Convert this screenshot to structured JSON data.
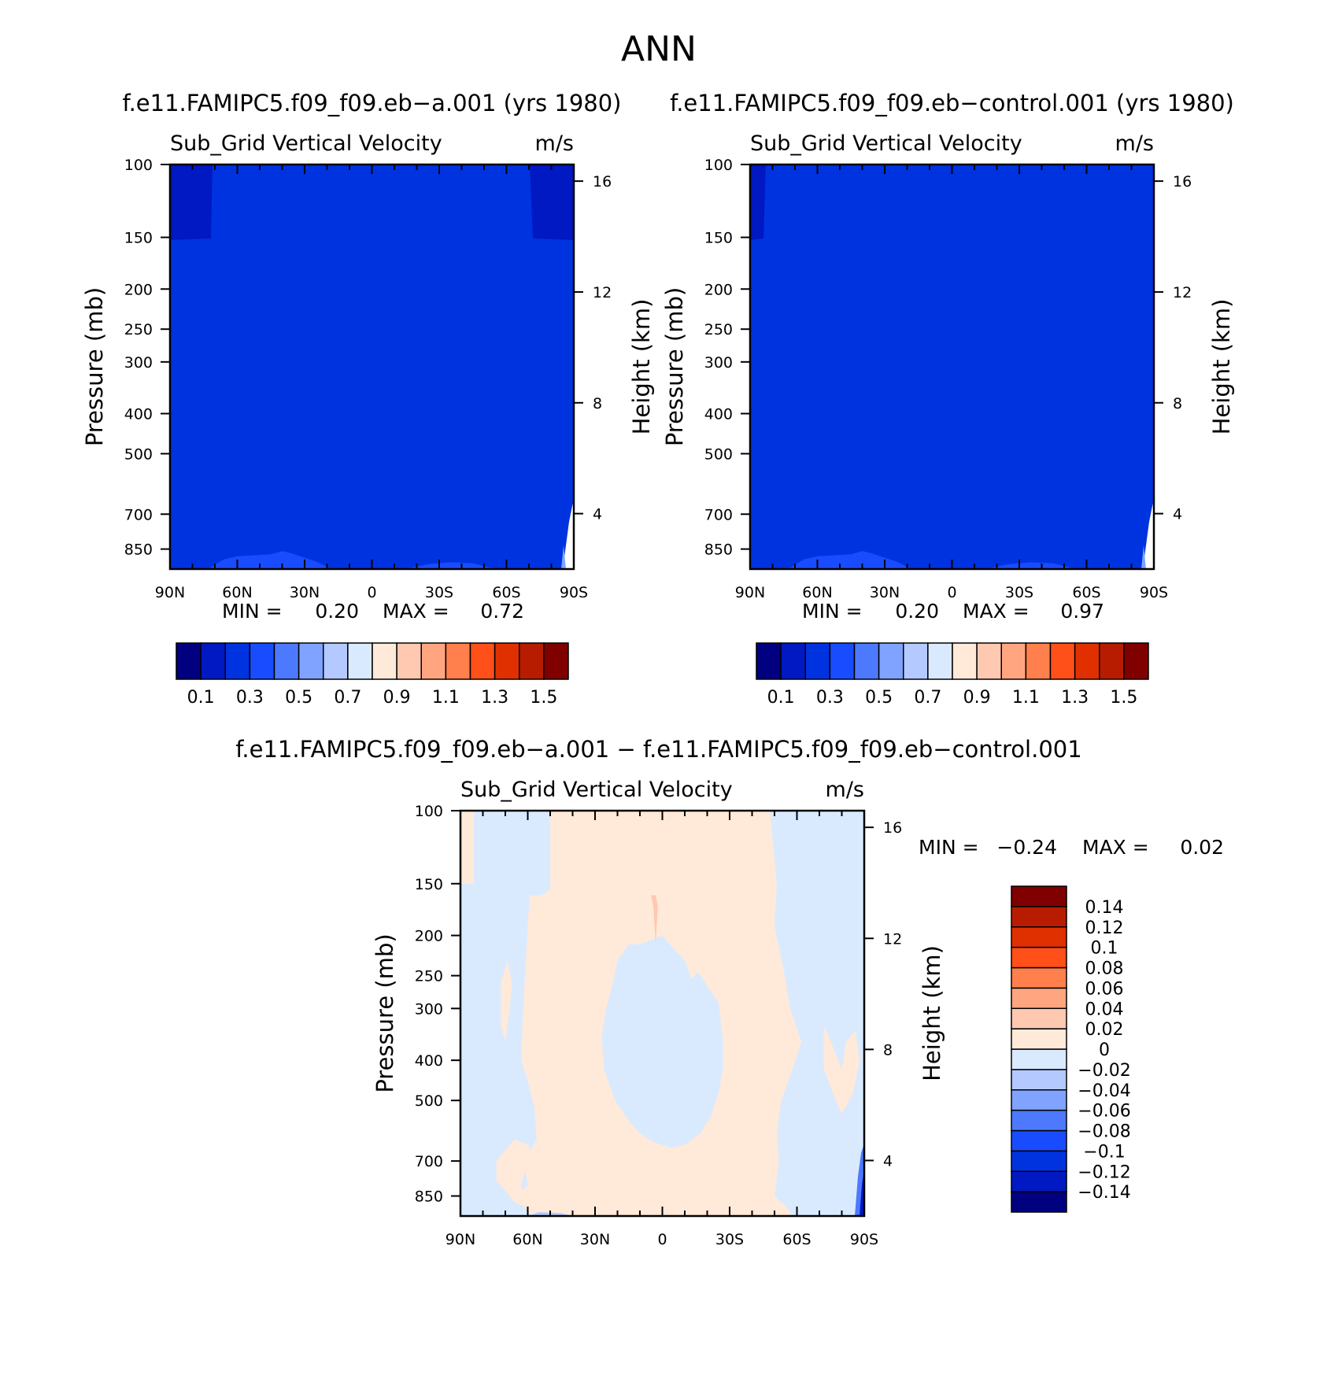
{
  "figure": {
    "title": "ANN"
  },
  "units_label": "m/s",
  "chart_data": [
    {
      "id": "case-a",
      "type": "contour",
      "title": "f.e11.FAMIPC5.f09_f09.eb−a.001 (yrs 1980)",
      "subtitle": "Sub_Grid Vertical Velocity",
      "units": "m/s",
      "xlabel": "",
      "ylabel": "Pressure (mb)",
      "y2label": "Height (km)",
      "x_ticks": [
        90,
        60,
        30,
        0,
        -30,
        -60,
        -90
      ],
      "x_tick_labels": [
        "90N",
        "60N",
        "30N",
        "0",
        "30S",
        "60S",
        "90S"
      ],
      "y_ticks": [
        100,
        150,
        200,
        250,
        300,
        400,
        500,
        700,
        850
      ],
      "y_tick_labels": [
        "100",
        "150",
        "200",
        "250",
        "300",
        "400",
        "500",
        "700",
        "850"
      ],
      "ylim": [
        100,
        950
      ],
      "y2_ticks": [
        16,
        12,
        8,
        4
      ],
      "y2_tick_labels": [
        "16",
        "12",
        "8",
        "4"
      ],
      "min_label": "MIN =",
      "min_value": "0.20",
      "max_label": "MAX =",
      "max_value": "0.72",
      "colorbar": {
        "orientation": "horizontal",
        "colors": [
          "#000080",
          "#0019c2",
          "#0033e0",
          "#1a4cff",
          "#4d79ff",
          "#80a3ff",
          "#b3c9ff",
          "#d9eaff",
          "#ffe9d9",
          "#ffc8b0",
          "#ffa680",
          "#ff7f4d",
          "#ff5019",
          "#e03000",
          "#b81c00",
          "#800000"
        ],
        "labels": [
          "0.1",
          "0.3",
          "0.5",
          "0.7",
          "0.9",
          "1.1",
          "1.3",
          "1.5"
        ]
      }
    },
    {
      "id": "case-control",
      "type": "contour",
      "title": "f.e11.FAMIPC5.f09_f09.eb−control.001 (yrs 1980)",
      "subtitle": "Sub_Grid Vertical Velocity",
      "units": "m/s",
      "xlabel": "",
      "ylabel": "Pressure (mb)",
      "y2label": "Height (km)",
      "x_ticks": [
        90,
        60,
        30,
        0,
        -30,
        -60,
        -90
      ],
      "x_tick_labels": [
        "90N",
        "60N",
        "30N",
        "0",
        "30S",
        "60S",
        "90S"
      ],
      "y_ticks": [
        100,
        150,
        200,
        250,
        300,
        400,
        500,
        700,
        850
      ],
      "y_tick_labels": [
        "100",
        "150",
        "200",
        "250",
        "300",
        "400",
        "500",
        "700",
        "850"
      ],
      "ylim": [
        100,
        950
      ],
      "y2_ticks": [
        16,
        12,
        8,
        4
      ],
      "y2_tick_labels": [
        "16",
        "12",
        "8",
        "4"
      ],
      "min_label": "MIN =",
      "min_value": "0.20",
      "max_label": "MAX =",
      "max_value": "0.97",
      "colorbar": {
        "orientation": "horizontal",
        "colors": [
          "#000080",
          "#0019c2",
          "#0033e0",
          "#1a4cff",
          "#4d79ff",
          "#80a3ff",
          "#b3c9ff",
          "#d9eaff",
          "#ffe9d9",
          "#ffc8b0",
          "#ffa680",
          "#ff7f4d",
          "#ff5019",
          "#e03000",
          "#b81c00",
          "#800000"
        ],
        "labels": [
          "0.1",
          "0.3",
          "0.5",
          "0.7",
          "0.9",
          "1.1",
          "1.3",
          "1.5"
        ]
      }
    },
    {
      "id": "difference",
      "type": "contour",
      "title": "f.e11.FAMIPC5.f09_f09.eb−a.001 − f.e11.FAMIPC5.f09_f09.eb−control.001",
      "subtitle": "Sub_Grid Vertical Velocity",
      "units": "m/s",
      "xlabel": "",
      "ylabel": "Pressure (mb)",
      "y2label": "Height (km)",
      "x_ticks": [
        90,
        60,
        30,
        0,
        -30,
        -60,
        -90
      ],
      "x_tick_labels": [
        "90N",
        "60N",
        "30N",
        "0",
        "30S",
        "60S",
        "90S"
      ],
      "y_ticks": [
        100,
        150,
        200,
        250,
        300,
        400,
        500,
        700,
        850
      ],
      "y_tick_labels": [
        "100",
        "150",
        "200",
        "250",
        "300",
        "400",
        "500",
        "700",
        "850"
      ],
      "ylim": [
        100,
        950
      ],
      "y2_ticks": [
        16,
        12,
        8,
        4
      ],
      "y2_tick_labels": [
        "16",
        "12",
        "8",
        "4"
      ],
      "min_label": "MIN =",
      "min_value": "−0.24",
      "max_label": "MAX =",
      "max_value": "0.02",
      "colorbar": {
        "orientation": "vertical",
        "colors": [
          "#000080",
          "#0019c2",
          "#0033e0",
          "#1a4cff",
          "#4d79ff",
          "#80a3ff",
          "#b3c9ff",
          "#d9eaff",
          "#ffe9d9",
          "#ffc8b0",
          "#ffa680",
          "#ff7f4d",
          "#ff5019",
          "#e03000",
          "#b81c00",
          "#800000"
        ],
        "labels": [
          "−0.14",
          "−0.12",
          "−0.1",
          "−0.08",
          "−0.06",
          "−0.04",
          "−0.02",
          "0",
          "0.02",
          "0.04",
          "0.06",
          "0.08",
          "0.1",
          "0.12",
          "0.14"
        ]
      }
    }
  ]
}
